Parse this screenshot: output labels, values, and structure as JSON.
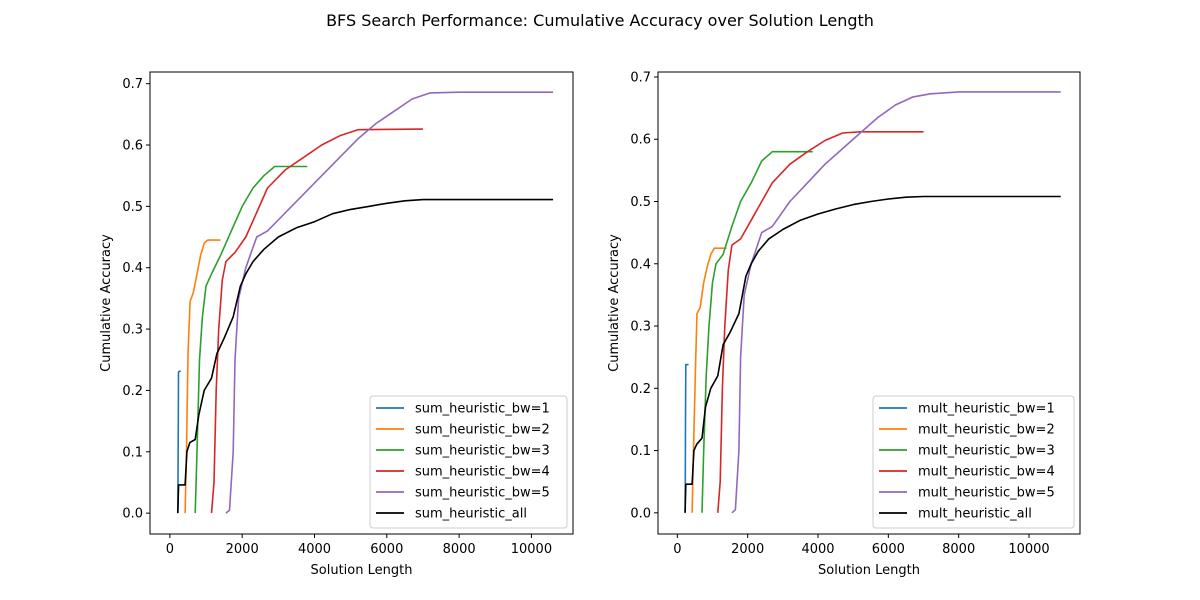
{
  "figure": {
    "title": "BFS Search Performance: Cumulative Accuracy over Solution Length"
  },
  "colors": {
    "bw1": "#1f77b4",
    "bw2": "#ff7f0e",
    "bw3": "#2ca02c",
    "bw4": "#d62728",
    "bw5": "#9467bd",
    "all": "#000000"
  },
  "chart_data": [
    {
      "type": "line",
      "xlabel": "Solution Length",
      "ylabel": "Cumulative Accuracy",
      "xlim": [
        -550,
        11150
      ],
      "ylim": [
        -0.034,
        0.719
      ],
      "xticks": [
        0,
        2000,
        4000,
        6000,
        8000,
        10000
      ],
      "yticks": [
        0.0,
        0.1,
        0.2,
        0.3,
        0.4,
        0.5,
        0.6,
        0.7
      ],
      "legend_position": "lower-right",
      "grid": false,
      "series": [
        {
          "name": "sum_heuristic_bw=1",
          "color_key": "bw1",
          "points": [
            [
              220,
              0.0
            ],
            [
              225,
              0.05
            ],
            [
              232,
              0.15
            ],
            [
              238,
              0.23
            ],
            [
              300,
              0.232
            ]
          ]
        },
        {
          "name": "sum_heuristic_bw=2",
          "color_key": "bw2",
          "points": [
            [
              420,
              0.0
            ],
            [
              460,
              0.1
            ],
            [
              500,
              0.26
            ],
            [
              560,
              0.345
            ],
            [
              650,
              0.36
            ],
            [
              750,
              0.39
            ],
            [
              850,
              0.42
            ],
            [
              950,
              0.44
            ],
            [
              1050,
              0.445
            ],
            [
              1400,
              0.445
            ]
          ]
        },
        {
          "name": "sum_heuristic_bw=3",
          "color_key": "bw3",
          "points": [
            [
              700,
              0.0
            ],
            [
              750,
              0.1
            ],
            [
              820,
              0.25
            ],
            [
              900,
              0.32
            ],
            [
              1000,
              0.37
            ],
            [
              1150,
              0.39
            ],
            [
              1400,
              0.42
            ],
            [
              1700,
              0.46
            ],
            [
              2000,
              0.5
            ],
            [
              2300,
              0.53
            ],
            [
              2600,
              0.55
            ],
            [
              2900,
              0.565
            ],
            [
              3500,
              0.565
            ],
            [
              3800,
              0.565
            ]
          ]
        },
        {
          "name": "sum_heuristic_bw=4",
          "color_key": "bw4",
          "points": [
            [
              1150,
              0.0
            ],
            [
              1220,
              0.05
            ],
            [
              1280,
              0.2
            ],
            [
              1350,
              0.3
            ],
            [
              1450,
              0.38
            ],
            [
              1550,
              0.41
            ],
            [
              1800,
              0.425
            ],
            [
              2100,
              0.45
            ],
            [
              2400,
              0.49
            ],
            [
              2700,
              0.53
            ],
            [
              3200,
              0.56
            ],
            [
              3700,
              0.58
            ],
            [
              4200,
              0.6
            ],
            [
              4700,
              0.615
            ],
            [
              5200,
              0.625
            ],
            [
              7000,
              0.626
            ]
          ]
        },
        {
          "name": "sum_heuristic_bw=5",
          "color_key": "bw5",
          "points": [
            [
              1550,
              0.0
            ],
            [
              1650,
              0.005
            ],
            [
              1750,
              0.1
            ],
            [
              1800,
              0.25
            ],
            [
              1900,
              0.35
            ],
            [
              2100,
              0.4
            ],
            [
              2400,
              0.45
            ],
            [
              2700,
              0.46
            ],
            [
              3200,
              0.49
            ],
            [
              3700,
              0.52
            ],
            [
              4200,
              0.55
            ],
            [
              4700,
              0.58
            ],
            [
              5200,
              0.61
            ],
            [
              5700,
              0.635
            ],
            [
              6200,
              0.655
            ],
            [
              6700,
              0.675
            ],
            [
              7200,
              0.685
            ],
            [
              8000,
              0.686
            ],
            [
              10600,
              0.686
            ]
          ]
        },
        {
          "name": "sum_heuristic_all",
          "color_key": "all",
          "points": [
            [
              220,
              0.0
            ],
            [
              240,
              0.046
            ],
            [
              420,
              0.046
            ],
            [
              470,
              0.1
            ],
            [
              550,
              0.115
            ],
            [
              700,
              0.12
            ],
            [
              800,
              0.16
            ],
            [
              950,
              0.2
            ],
            [
              1150,
              0.22
            ],
            [
              1300,
              0.26
            ],
            [
              1500,
              0.285
            ],
            [
              1750,
              0.32
            ],
            [
              1950,
              0.37
            ],
            [
              2100,
              0.39
            ],
            [
              2300,
              0.41
            ],
            [
              2600,
              0.43
            ],
            [
              3000,
              0.45
            ],
            [
              3500,
              0.465
            ],
            [
              4000,
              0.475
            ],
            [
              4500,
              0.488
            ],
            [
              5000,
              0.495
            ],
            [
              5500,
              0.5
            ],
            [
              6000,
              0.505
            ],
            [
              6500,
              0.509
            ],
            [
              7000,
              0.511
            ],
            [
              8000,
              0.511
            ],
            [
              10600,
              0.511
            ]
          ]
        }
      ]
    },
    {
      "type": "line",
      "xlabel": "Solution Length",
      "ylabel": "Cumulative Accuracy",
      "xlim": [
        -550,
        11450
      ],
      "ylim": [
        -0.034,
        0.708
      ],
      "xticks": [
        0,
        2000,
        4000,
        6000,
        8000,
        10000
      ],
      "yticks": [
        0.0,
        0.1,
        0.2,
        0.3,
        0.4,
        0.5,
        0.6,
        0.7
      ],
      "legend_position": "lower-right",
      "grid": false,
      "series": [
        {
          "name": "mult_heuristic_bw=1",
          "color_key": "bw1",
          "points": [
            [
              220,
              0.0
            ],
            [
              225,
              0.05
            ],
            [
              232,
              0.15
            ],
            [
              240,
              0.238
            ],
            [
              320,
              0.238
            ]
          ]
        },
        {
          "name": "mult_heuristic_bw=2",
          "color_key": "bw2",
          "points": [
            [
              420,
              0.0
            ],
            [
              460,
              0.1
            ],
            [
              520,
              0.24
            ],
            [
              560,
              0.32
            ],
            [
              650,
              0.33
            ],
            [
              750,
              0.37
            ],
            [
              850,
              0.395
            ],
            [
              950,
              0.415
            ],
            [
              1050,
              0.425
            ],
            [
              1400,
              0.425
            ]
          ]
        },
        {
          "name": "mult_heuristic_bw=3",
          "color_key": "bw3",
          "points": [
            [
              700,
              0.0
            ],
            [
              750,
              0.1
            ],
            [
              820,
              0.22
            ],
            [
              900,
              0.3
            ],
            [
              1000,
              0.37
            ],
            [
              1100,
              0.4
            ],
            [
              1300,
              0.415
            ],
            [
              1550,
              0.46
            ],
            [
              1800,
              0.5
            ],
            [
              2100,
              0.53
            ],
            [
              2400,
              0.565
            ],
            [
              2700,
              0.58
            ],
            [
              3200,
              0.58
            ],
            [
              3850,
              0.58
            ]
          ]
        },
        {
          "name": "mult_heuristic_bw=4",
          "color_key": "bw4",
          "points": [
            [
              1150,
              0.0
            ],
            [
              1220,
              0.05
            ],
            [
              1280,
              0.2
            ],
            [
              1350,
              0.3
            ],
            [
              1450,
              0.39
            ],
            [
              1550,
              0.43
            ],
            [
              1800,
              0.44
            ],
            [
              2100,
              0.47
            ],
            [
              2400,
              0.5
            ],
            [
              2700,
              0.53
            ],
            [
              3200,
              0.56
            ],
            [
              3700,
              0.58
            ],
            [
              4200,
              0.598
            ],
            [
              4700,
              0.61
            ],
            [
              5200,
              0.612
            ],
            [
              7000,
              0.612
            ]
          ]
        },
        {
          "name": "mult_heuristic_bw=5",
          "color_key": "bw5",
          "points": [
            [
              1550,
              0.0
            ],
            [
              1650,
              0.005
            ],
            [
              1750,
              0.1
            ],
            [
              1800,
              0.25
            ],
            [
              1900,
              0.35
            ],
            [
              2100,
              0.4
            ],
            [
              2400,
              0.45
            ],
            [
              2700,
              0.46
            ],
            [
              3200,
              0.5
            ],
            [
              3700,
              0.53
            ],
            [
              4200,
              0.56
            ],
            [
              4700,
              0.585
            ],
            [
              5200,
              0.61
            ],
            [
              5700,
              0.635
            ],
            [
              6200,
              0.655
            ],
            [
              6700,
              0.668
            ],
            [
              7200,
              0.673
            ],
            [
              8000,
              0.676
            ],
            [
              10900,
              0.676
            ]
          ]
        },
        {
          "name": "mult_heuristic_all",
          "color_key": "all",
          "points": [
            [
              220,
              0.0
            ],
            [
              240,
              0.046
            ],
            [
              420,
              0.046
            ],
            [
              470,
              0.1
            ],
            [
              550,
              0.11
            ],
            [
              700,
              0.12
            ],
            [
              800,
              0.17
            ],
            [
              950,
              0.2
            ],
            [
              1150,
              0.22
            ],
            [
              1300,
              0.27
            ],
            [
              1500,
              0.29
            ],
            [
              1750,
              0.32
            ],
            [
              1950,
              0.38
            ],
            [
              2100,
              0.4
            ],
            [
              2300,
              0.42
            ],
            [
              2600,
              0.44
            ],
            [
              3000,
              0.455
            ],
            [
              3500,
              0.47
            ],
            [
              4000,
              0.48
            ],
            [
              4500,
              0.488
            ],
            [
              5000,
              0.495
            ],
            [
              5500,
              0.5
            ],
            [
              6000,
              0.504
            ],
            [
              6500,
              0.507
            ],
            [
              7000,
              0.508
            ],
            [
              8000,
              0.508
            ],
            [
              10900,
              0.508
            ]
          ]
        }
      ]
    }
  ]
}
